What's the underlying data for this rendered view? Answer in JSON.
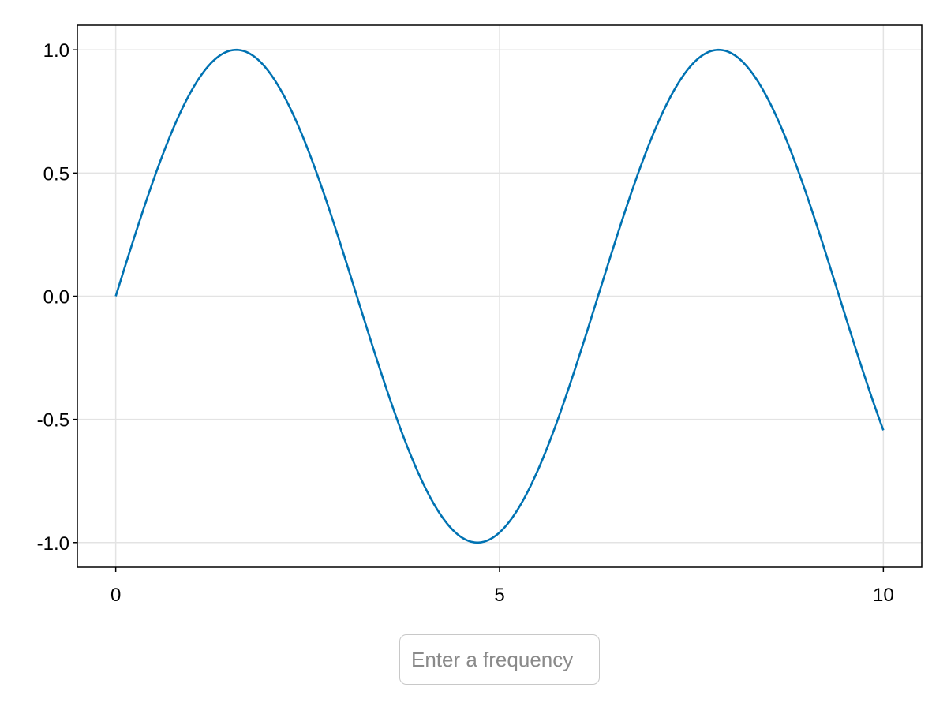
{
  "chart_data": {
    "type": "line",
    "title": "",
    "xlabel": "",
    "ylabel": "",
    "xlim": [
      -0.5,
      10.5
    ],
    "ylim": [
      -1.1,
      1.1
    ],
    "x_ticks": [
      0,
      5,
      10
    ],
    "x_tick_labels": [
      "0",
      "5",
      "10"
    ],
    "y_ticks": [
      1.0,
      0.5,
      0.0,
      -0.5,
      -1.0
    ],
    "y_tick_labels": [
      "1.0",
      "0.5",
      "0.0",
      "-0.5",
      "-1.0"
    ],
    "grid": true,
    "series": [
      {
        "color": "#0072b2",
        "function": "sin(x)",
        "x_range": [
          0,
          10
        ],
        "x": [
          0,
          0.5,
          1,
          1.5,
          2,
          2.5,
          3,
          3.5,
          4,
          4.5,
          5,
          5.5,
          6,
          6.5,
          7,
          7.5,
          8,
          8.5,
          9,
          9.5,
          10
        ],
        "y": [
          0.0,
          0.479,
          0.841,
          0.997,
          0.909,
          0.598,
          0.141,
          -0.351,
          -0.757,
          -0.978,
          -0.959,
          -0.706,
          -0.279,
          0.215,
          0.657,
          0.938,
          0.989,
          0.798,
          0.412,
          -0.075,
          -0.544
        ]
      }
    ]
  },
  "frequency_input": {
    "placeholder": "Enter a frequency",
    "value": ""
  }
}
